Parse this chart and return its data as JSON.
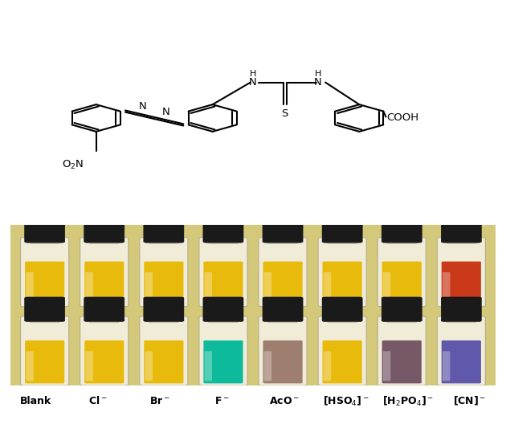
{
  "fig_width": 6.3,
  "fig_height": 5.28,
  "dpi": 100,
  "bg_color": "#ffffff",
  "photo_bg": "#d4c87a",
  "photo_border": "#c8b85a",
  "top_row_colors": [
    "#e8b800",
    "#e8b800",
    "#e8b800",
    "#e8b800",
    "#e8b800",
    "#e8b800",
    "#e8b800",
    "#c83010"
  ],
  "bottom_row_colors": [
    "#e8b800",
    "#e8b800",
    "#e8b800",
    "#00b898",
    "#9a7868",
    "#e8b800",
    "#705060",
    "#5850a8"
  ],
  "vial_glass": "#f0ecd8",
  "vial_glass_edge": "#b0a888",
  "vial_highlight": "#ffffff",
  "cap_color": "#1a1a1a",
  "cap_edge": "#0a0a0a",
  "label_texts": [
    "Blank",
    "Cl$^-$",
    "Br$^-$",
    "F$^-$",
    "AcO$^-$",
    "[HSO$_4$]$^-$",
    "[H$_2$PO$_4$]$^-$",
    "[CN]$^-$"
  ],
  "struct_lw": 1.5,
  "ring_r": 0.055,
  "ao": 30
}
